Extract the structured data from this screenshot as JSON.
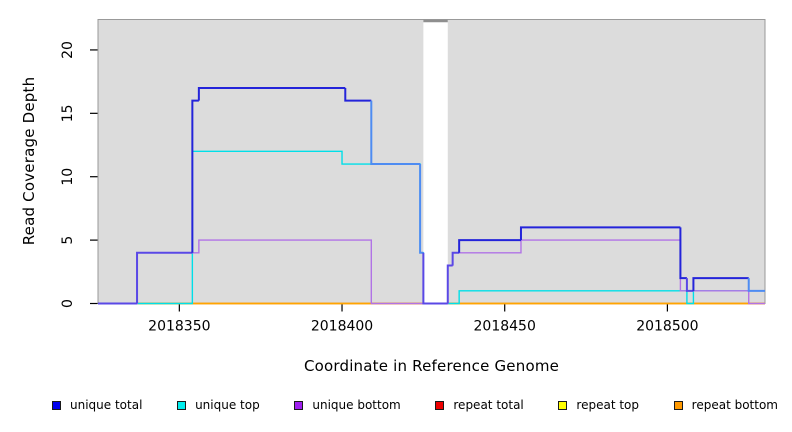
{
  "chart_data": {
    "type": "line",
    "subtype": "step",
    "title": "",
    "xlabel": "Coordinate in Reference Genome",
    "ylabel": "Read Coverage Depth",
    "xlim": [
      2018325,
      2018530
    ],
    "ylim": [
      0,
      22.4
    ],
    "x_ticks": [
      2018350,
      2018400,
      2018450,
      2018500
    ],
    "y_ticks": [
      0,
      5,
      10,
      15,
      20
    ],
    "grid": false,
    "legend_position": "bottom",
    "shaded_regions": [
      {
        "x0": 2018325,
        "x1": 2018425,
        "color": "#DCDCDC"
      },
      {
        "x0": 2018432.5,
        "x1": 2018530,
        "color": "#DCDCDC"
      }
    ],
    "gap_region": {
      "x0": 2018425,
      "x1": 2018432.5,
      "color": "#FFFFFF"
    },
    "series": [
      {
        "name": "unique total",
        "line_color": "#2424DA",
        "legend_color": "#0000EE",
        "points": [
          [
            2018325,
            0
          ],
          [
            2018337,
            4
          ],
          [
            2018354,
            16
          ],
          [
            2018356,
            17
          ],
          [
            2018401,
            16
          ],
          [
            2018409,
            11
          ],
          [
            2018424,
            4
          ],
          [
            2018425,
            0
          ],
          [
            2018432.5,
            3
          ],
          [
            2018434,
            4
          ],
          [
            2018436,
            5
          ],
          [
            2018455,
            6
          ],
          [
            2018504,
            2
          ],
          [
            2018506,
            1
          ],
          [
            2018508,
            2
          ],
          [
            2018525,
            1
          ],
          [
            2018530,
            1
          ]
        ]
      },
      {
        "name": "unique top",
        "line_color": "#00DFE8",
        "legend_color": "#00EEEE",
        "points": [
          [
            2018325,
            0
          ],
          [
            2018354,
            12
          ],
          [
            2018400,
            11
          ],
          [
            2018424,
            4
          ],
          [
            2018425,
            0
          ],
          [
            2018436,
            1
          ],
          [
            2018506,
            0
          ],
          [
            2018508,
            1
          ],
          [
            2018530,
            1
          ]
        ]
      },
      {
        "name": "unique bottom",
        "line_color": "#B173E6",
        "legend_color": "#A020F0",
        "points": [
          [
            2018325,
            0
          ],
          [
            2018337,
            4
          ],
          [
            2018356,
            5
          ],
          [
            2018409,
            0
          ],
          [
            2018432.5,
            3
          ],
          [
            2018434,
            4
          ],
          [
            2018455,
            5
          ],
          [
            2018504,
            1
          ],
          [
            2018525,
            0
          ],
          [
            2018530,
            0
          ]
        ]
      },
      {
        "name": "repeat total",
        "line_color": "#DD0000",
        "legend_color": "#EE0000",
        "points": [
          [
            2018325,
            0
          ],
          [
            2018530,
            0
          ]
        ]
      },
      {
        "name": "repeat top",
        "line_color": "#F2F200",
        "legend_color": "#FFFF00",
        "points": [
          [
            2018325,
            0
          ],
          [
            2018530,
            0
          ]
        ]
      },
      {
        "name": "repeat bottom",
        "line_color": "#FFA500",
        "legend_color": "#FF9900",
        "points": [
          [
            2018325,
            0
          ],
          [
            2018530,
            0
          ]
        ]
      }
    ],
    "overlap_colors": {
      "total_equals_top": "#4E8CF2",
      "total_equals_bottom": "#5A48E6"
    }
  }
}
